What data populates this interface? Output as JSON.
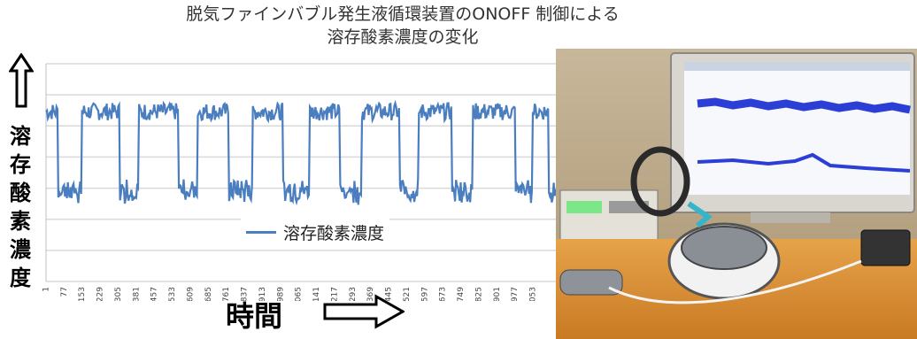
{
  "title_line1": "脱気ファインバブル発生液循環装置のONOFF 制御による",
  "title_line2": "溶存酸素濃度の変化",
  "y_label_chars": [
    "溶",
    "存",
    "酸",
    "素",
    "濃",
    "度"
  ],
  "x_label": "時間",
  "colors": {
    "series": "#4a7ebf",
    "grid": "#d9d9d9",
    "text": "#333333"
  },
  "chart_data": {
    "type": "line",
    "title": "脱気ファインバブル発生液循環装置のONOFF 制御による 溶存酸素濃度の変化",
    "xlabel": "時間",
    "ylabel": "溶存酸素濃度",
    "grid": true,
    "legend_position": "center",
    "x_tick_labels": [
      "1",
      "77",
      "153",
      "229",
      "305",
      "381",
      "457",
      "533",
      "609",
      "685",
      "761",
      "837",
      "913",
      "989",
      "1065",
      "1141",
      "1217",
      "1293",
      "1369",
      "1445",
      "1521",
      "1597",
      "1673",
      "1749",
      "1825",
      "1901",
      "1977",
      "2053"
    ],
    "series": [
      {
        "name": "溶存酸素濃度",
        "x_range": [
          1,
          2150
        ],
        "high_periods": [
          [
            1,
            50
          ],
          [
            150,
            310
          ],
          [
            390,
            560
          ],
          [
            640,
            770
          ],
          [
            870,
            1000
          ],
          [
            1110,
            1240
          ],
          [
            1330,
            1490
          ],
          [
            1570,
            1710
          ],
          [
            1800,
            1980
          ],
          [
            2050,
            2120
          ]
        ],
        "high_level": 0.78,
        "low_level": 0.42
      }
    ]
  },
  "photo": {}
}
